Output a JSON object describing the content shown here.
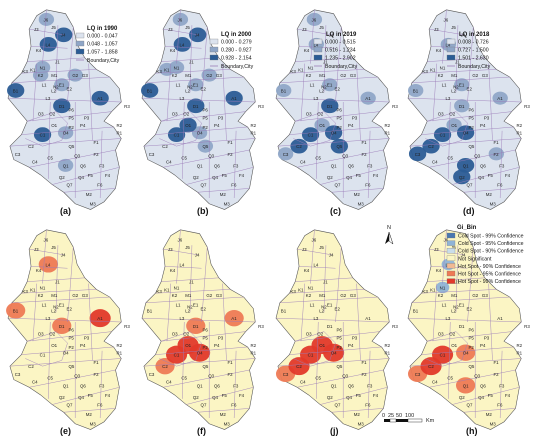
{
  "figure": {
    "panels": [
      {
        "label": "(a)",
        "kind": "lq",
        "legend_title": "LQ in 1990",
        "classes": [
          "0.000 - 0.047",
          "0.048 - 1.057",
          "1.057 - 1.858"
        ],
        "boundary_label": "Boundary,City",
        "class_colors": [
          "#dce3ee",
          "#8fa6c7",
          "#2b5c95"
        ],
        "high_units": [
          "A1",
          "B1",
          "C1",
          "L4",
          "D1",
          "J4"
        ],
        "mid_units": [
          "E1",
          "K2",
          "N1",
          "J6",
          "G2",
          "O4",
          "Q1"
        ]
      },
      {
        "label": "(b)",
        "kind": "lq",
        "legend_title": "LQ in 2000",
        "classes": [
          "0.000 - 0.279",
          "0.280 - 0.927",
          "0.928 - 2.154"
        ],
        "boundary_label": "Boundary,City",
        "class_colors": [
          "#dce3ee",
          "#8fa6c7",
          "#2b5c95"
        ],
        "high_units": [
          "A1",
          "B1",
          "C1",
          "L4",
          "D1",
          "J4",
          "O1"
        ],
        "mid_units": [
          "E1",
          "N1",
          "G2",
          "J6",
          "K1",
          "Q5",
          "O4"
        ]
      },
      {
        "label": "(c)",
        "kind": "lq",
        "legend_title": "LQ in 2019",
        "classes": [
          "0.000 - 0.515",
          "0.516 - 1.234",
          "1.235 - 2.902"
        ],
        "boundary_label": "Boundary,City",
        "class_colors": [
          "#dce3ee",
          "#8fa6c7",
          "#2b5c95"
        ],
        "high_units": [
          "C1",
          "C2",
          "O4",
          "Q5",
          "D1"
        ],
        "mid_units": [
          "B1",
          "A1",
          "E1",
          "C3",
          "O1",
          "L4",
          "J6"
        ]
      },
      {
        "label": "(d)",
        "kind": "lq",
        "legend_title": "LQ in 2018",
        "classes": [
          "0.008 - 0.726",
          "0.727 - 1.500",
          "1.501 - 2.630"
        ],
        "boundary_label": "Boundary,City",
        "class_colors": [
          "#dce3ee",
          "#8fa6c7",
          "#2b5c95"
        ],
        "high_units": [
          "C1",
          "C2",
          "C3",
          "O4",
          "Q1",
          "Q2"
        ],
        "mid_units": [
          "B1",
          "A1",
          "D1",
          "E1",
          "O1",
          "L4",
          "F2"
        ]
      },
      {
        "label": "(e)",
        "kind": "hotspot",
        "hot99_units": [
          "A1"
        ],
        "hot95_units": [
          "B1",
          "L4",
          "D1"
        ],
        "hot90_units": []
      },
      {
        "label": "(f)",
        "kind": "hotspot",
        "hot99_units": [
          "C1",
          "O1",
          "O4"
        ],
        "hot95_units": [
          "D1",
          "A1",
          "C2"
        ],
        "hot90_units": []
      },
      {
        "label": "(j)",
        "kind": "hotspot",
        "hot99_units": [
          "C1",
          "C2",
          "O4",
          "O1"
        ],
        "hot95_units": [
          "C3"
        ],
        "hot90_units": []
      },
      {
        "label": "(h)",
        "kind": "hotspot",
        "hot99_units": [
          "C1",
          "C2"
        ],
        "hot95_units": [
          "C3",
          "O4",
          "Q1"
        ],
        "hot90_units": [],
        "cold_units": [
          "L4",
          "N1"
        ]
      }
    ],
    "hotspot_legend": {
      "title": "Gi_Bin",
      "items": [
        {
          "label": "Cold Spot - 99% Confidence",
          "color": "#4a78b0"
        },
        {
          "label": "Cold Spot - 95% Confidence",
          "color": "#8fb3d6"
        },
        {
          "label": "Cold Spot - 90% Confidence",
          "color": "#c9dcea"
        },
        {
          "label": "Not Significant",
          "color": "#fbf5c4"
        },
        {
          "label": "Hot Spot - 90% Confidence",
          "color": "#f2b993"
        },
        {
          "label": "Hot Spot - 95% Confidence",
          "color": "#ee7a55"
        },
        {
          "label": "Hot Spot - 99% Confidence",
          "color": "#e2392a"
        }
      ]
    },
    "north_arrow": "N",
    "scale_bar": {
      "ticks": [
        "0",
        "25",
        "50",
        "100"
      ],
      "unit": "Km"
    },
    "unit_codes": [
      "J6",
      "J3",
      "J5",
      "J4",
      "K4",
      "L4",
      "K3",
      "K1",
      "N1",
      "K2",
      "J1",
      "M1",
      "N2",
      "G2",
      "G3",
      "B1",
      "L1",
      "L2",
      "L3",
      "D1",
      "E1",
      "E2",
      "A1",
      "O2",
      "P6",
      "P5",
      "P3",
      "P4",
      "P2",
      "R2",
      "R1",
      "R3",
      "C1",
      "O1",
      "O3",
      "O4",
      "C2",
      "C3",
      "C4",
      "C5",
      "F1",
      "F2",
      "F3",
      "F4",
      "F5",
      "F6",
      "Q1",
      "Q2",
      "Q3",
      "Q4",
      "Q5",
      "Q6",
      "Q7",
      "M2",
      "M3"
    ],
    "boundary_color": "#9a7bb8"
  }
}
